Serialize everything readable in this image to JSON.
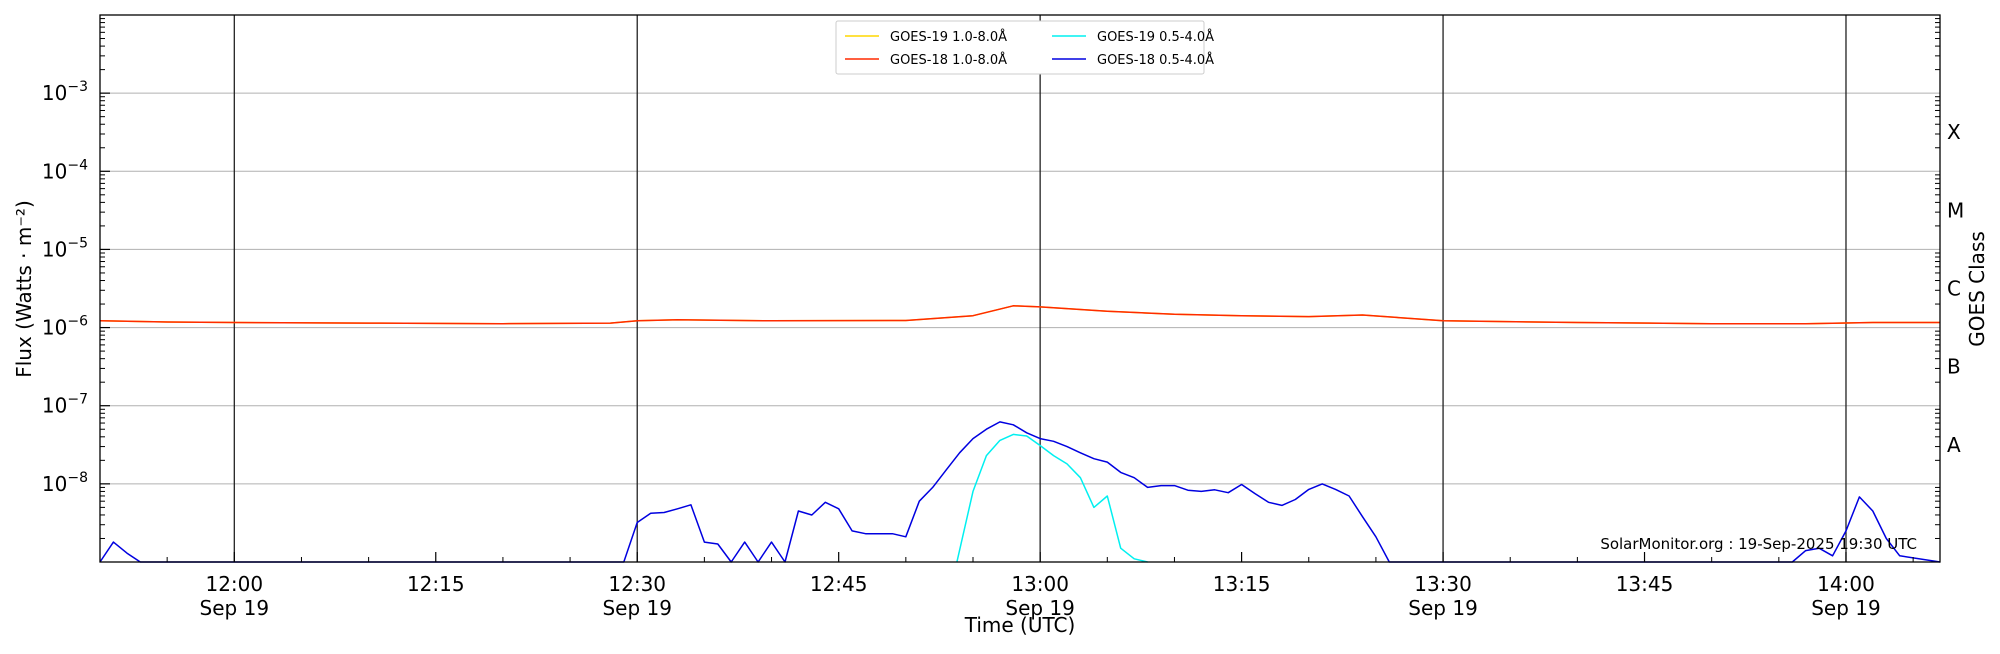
{
  "chart_data": {
    "type": "line",
    "xlabel": "Time (UTC)",
    "ylabel": "Flux (Watts · m⁻²)",
    "y2label": "GOES Class",
    "yscale": "log",
    "xlim": [
      -10,
      127
    ],
    "ylim": [
      1e-09,
      0.01
    ],
    "grid": "horizontal at decades",
    "legend_location": "top-center",
    "credit": "SolarMonitor.org : 19-Sep-2025 19:30 UTC",
    "x_ticks": [
      {
        "value": 0,
        "time": "12:00",
        "date": "Sep 19"
      },
      {
        "value": 15,
        "time": "12:15",
        "date": ""
      },
      {
        "value": 30,
        "time": "12:30",
        "date": "Sep 19"
      },
      {
        "value": 45,
        "time": "12:45",
        "date": ""
      },
      {
        "value": 60,
        "time": "13:00",
        "date": "Sep 19"
      },
      {
        "value": 75,
        "time": "13:15",
        "date": ""
      },
      {
        "value": 90,
        "time": "13:30",
        "date": "Sep 19"
      },
      {
        "value": 105,
        "time": "13:45",
        "date": ""
      },
      {
        "value": 120,
        "time": "14:00",
        "date": "Sep 19"
      }
    ],
    "x_vlines": [
      0,
      30,
      60,
      90,
      120
    ],
    "y_ticks": [
      {
        "value": 1e-08,
        "base": "10",
        "exp": "−8"
      },
      {
        "value": 1e-07,
        "base": "10",
        "exp": "−7"
      },
      {
        "value": 1e-06,
        "base": "10",
        "exp": "−6"
      },
      {
        "value": 1e-05,
        "base": "10",
        "exp": "−5"
      },
      {
        "value": 0.0001,
        "base": "10",
        "exp": "−4"
      },
      {
        "value": 0.001,
        "base": "10",
        "exp": "−3"
      }
    ],
    "goes_classes": [
      {
        "label": "A",
        "value": 3.16e-08
      },
      {
        "label": "B",
        "value": 3.16e-07
      },
      {
        "label": "C",
        "value": 3.16e-06
      },
      {
        "label": "M",
        "value": 3.16e-05
      },
      {
        "label": "X",
        "value": 0.000316
      }
    ],
    "series": [
      {
        "name": "GOES-19 1.0-8.0Å",
        "color": "#ffd700",
        "x": [
          -10,
          -5,
          0,
          10,
          20,
          28,
          30,
          33,
          40,
          50,
          55,
          58,
          60,
          65,
          70,
          75,
          80,
          84,
          90,
          100,
          110,
          117,
          122,
          127
        ],
        "y": [
          1.22e-06,
          1.18e-06,
          1.16e-06,
          1.14e-06,
          1.12e-06,
          1.14e-06,
          1.22e-06,
          1.26e-06,
          1.22e-06,
          1.23e-06,
          1.42e-06,
          1.9e-06,
          1.84e-06,
          1.62e-06,
          1.48e-06,
          1.42e-06,
          1.38e-06,
          1.45e-06,
          1.22e-06,
          1.16e-06,
          1.12e-06,
          1.12e-06,
          1.16e-06,
          1.16e-06
        ]
      },
      {
        "name": "GOES-18 1.0-8.0Å",
        "color": "#ff2a00",
        "x": [
          -10,
          -5,
          0,
          10,
          20,
          28,
          30,
          33,
          40,
          50,
          55,
          58,
          60,
          65,
          70,
          75,
          80,
          84,
          90,
          100,
          110,
          117,
          122,
          127
        ],
        "y": [
          1.22e-06,
          1.18e-06,
          1.16e-06,
          1.14e-06,
          1.12e-06,
          1.14e-06,
          1.22e-06,
          1.26e-06,
          1.22e-06,
          1.23e-06,
          1.42e-06,
          1.9e-06,
          1.84e-06,
          1.62e-06,
          1.48e-06,
          1.42e-06,
          1.38e-06,
          1.45e-06,
          1.22e-06,
          1.16e-06,
          1.12e-06,
          1.12e-06,
          1.16e-06,
          1.16e-06
        ]
      },
      {
        "name": "GOES-19 0.5-4.0Å",
        "color": "#00f0f0",
        "x": [
          53.8,
          55,
          56,
          57,
          58,
          59,
          60,
          61,
          62,
          63,
          64,
          65,
          66,
          67,
          68
        ],
        "y": [
          1e-09,
          8e-09,
          2.3e-08,
          3.6e-08,
          4.3e-08,
          4.1e-08,
          3.1e-08,
          2.3e-08,
          1.8e-08,
          1.2e-08,
          5e-09,
          7e-09,
          1.5e-09,
          1.1e-09,
          1e-09
        ]
      },
      {
        "name": "GOES-18 0.5-4.0Å",
        "color": "#0000e0",
        "x": [
          -10,
          -9,
          -8,
          -7,
          29,
          30,
          31,
          32,
          33,
          34,
          35,
          36,
          37,
          38,
          39,
          40,
          41,
          42,
          43,
          44,
          45,
          46,
          47,
          48,
          49,
          50,
          51,
          52,
          53,
          54,
          55,
          56,
          57,
          58,
          59,
          60,
          61,
          62,
          63,
          64,
          65,
          66,
          67,
          68,
          69,
          70,
          71,
          72,
          73,
          74,
          75,
          76,
          77,
          78,
          79,
          80,
          81,
          82,
          83,
          84,
          85,
          86,
          87,
          88,
          116,
          117,
          118,
          119,
          120,
          121,
          122,
          123,
          124,
          127
        ],
        "y": [
          1e-09,
          1.8e-09,
          1.3e-09,
          1e-09,
          1e-09,
          3.2e-09,
          4.2e-09,
          4.3e-09,
          4.8e-09,
          5.4e-09,
          1.8e-09,
          1.7e-09,
          1e-09,
          1.8e-09,
          1e-09,
          1.8e-09,
          1e-09,
          4.5e-09,
          4e-09,
          5.8e-09,
          4.8e-09,
          2.5e-09,
          2.3e-09,
          2.3e-09,
          2.3e-09,
          2.1e-09,
          6e-09,
          9e-09,
          1.5e-08,
          2.5e-08,
          3.8e-08,
          5e-08,
          6.2e-08,
          5.7e-08,
          4.5e-08,
          3.8e-08,
          3.5e-08,
          3e-08,
          2.5e-08,
          2.1e-08,
          1.9e-08,
          1.4e-08,
          1.2e-08,
          9e-09,
          9.5e-09,
          9.5e-09,
          8.3e-09,
          8e-09,
          8.4e-09,
          7.7e-09,
          9.8e-09,
          7.5e-09,
          5.8e-09,
          5.3e-09,
          6.3e-09,
          8.5e-09,
          1e-08,
          8.5e-09,
          7e-09,
          3.8e-09,
          2.1e-09,
          1e-09,
          1e-09,
          1e-09,
          1e-09,
          1.4e-09,
          1.5e-09,
          1.2e-09,
          2.5e-09,
          6.8e-09,
          4.5e-09,
          2e-09,
          1.2e-09,
          1e-09
        ]
      }
    ]
  }
}
